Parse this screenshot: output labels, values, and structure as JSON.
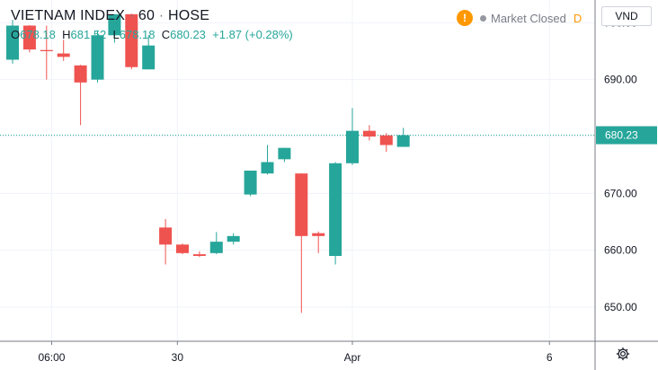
{
  "header": {
    "symbol": "VIETNAM INDEX",
    "interval": "60",
    "exchange": "HOSE",
    "sep": "·"
  },
  "ohlc": {
    "o_label": "O",
    "o": "678.18",
    "h_label": "H",
    "h": "681.52",
    "l_label": "L",
    "l": "678.18",
    "c_label": "C",
    "c": "680.23",
    "change": "+1.87 (+0.28%)"
  },
  "status": {
    "market": "Market Closed",
    "badge": "!",
    "d_label": "D"
  },
  "currency": "VND",
  "colors": {
    "up": "#26a69a",
    "down": "#ef5350",
    "grid": "#f0f3fa",
    "axis": "#131722",
    "price_line": "#26a69a"
  },
  "icons": [
    "warning-icon",
    "status-dot-icon",
    "settings-gear-icon"
  ],
  "chart_data": {
    "type": "candlestick",
    "ylim": [
      644,
      704
    ],
    "y_ticks": [
      "650.00",
      "660.00",
      "670.00",
      "680.00",
      "690.00",
      "700.00"
    ],
    "y_tick_values": [
      650,
      660,
      670,
      680,
      690,
      700
    ],
    "last_price": 680.23,
    "last_price_label": "680.23",
    "x_ticks": [
      {
        "label": "06:00",
        "index": 2.3
      },
      {
        "label": "30",
        "index": 9.7
      },
      {
        "label": "Apr",
        "index": 20.0
      },
      {
        "label": "6",
        "index": 31.6
      }
    ],
    "candles": [
      {
        "o": 693.5,
        "h": 700.5,
        "l": 692.8,
        "c": 699.5
      },
      {
        "o": 699.5,
        "h": 699.6,
        "l": 694.8,
        "c": 695.3
      },
      {
        "o": 695.2,
        "h": 699.5,
        "l": 690.0,
        "c": 695.0
      },
      {
        "o": 694.6,
        "h": 697.0,
        "l": 693.3,
        "c": 694.0
      },
      {
        "o": 692.5,
        "h": 692.6,
        "l": 682.0,
        "c": 689.5
      },
      {
        "o": 690.0,
        "h": 698.5,
        "l": 689.5,
        "c": 697.8
      },
      {
        "o": 697.8,
        "h": 701.5,
        "l": 696.5,
        "c": 701.5
      },
      {
        "o": 701.5,
        "h": 701.6,
        "l": 691.8,
        "c": 692.2
      },
      {
        "o": 691.8,
        "h": 697.8,
        "l": 691.8,
        "c": 696.0
      },
      {
        "o": 664.0,
        "h": 665.5,
        "l": 657.5,
        "c": 661.0
      },
      {
        "o": 661.0,
        "h": 661.2,
        "l": 659.3,
        "c": 659.5
      },
      {
        "o": 659.3,
        "h": 659.8,
        "l": 658.8,
        "c": 659.0
      },
      {
        "o": 659.5,
        "h": 663.2,
        "l": 659.3,
        "c": 661.5
      },
      {
        "o": 661.5,
        "h": 663.0,
        "l": 661.0,
        "c": 662.5
      },
      {
        "o": 669.8,
        "h": 674.0,
        "l": 669.5,
        "c": 674.0
      },
      {
        "o": 673.5,
        "h": 678.5,
        "l": 673.3,
        "c": 675.5
      },
      {
        "o": 676.0,
        "h": 678.0,
        "l": 675.5,
        "c": 678.0
      },
      {
        "o": 673.5,
        "h": 673.5,
        "l": 649.0,
        "c": 662.5
      },
      {
        "o": 663.0,
        "h": 663.3,
        "l": 659.5,
        "c": 662.5
      },
      {
        "o": 659.0,
        "h": 675.5,
        "l": 657.5,
        "c": 675.3
      },
      {
        "o": 675.3,
        "h": 685.0,
        "l": 675.0,
        "c": 681.0
      },
      {
        "o": 681.0,
        "h": 682.0,
        "l": 679.3,
        "c": 680.0
      },
      {
        "o": 680.2,
        "h": 680.6,
        "l": 677.3,
        "c": 678.5
      },
      {
        "o": 678.18,
        "h": 681.52,
        "l": 678.18,
        "c": 680.23
      }
    ]
  }
}
